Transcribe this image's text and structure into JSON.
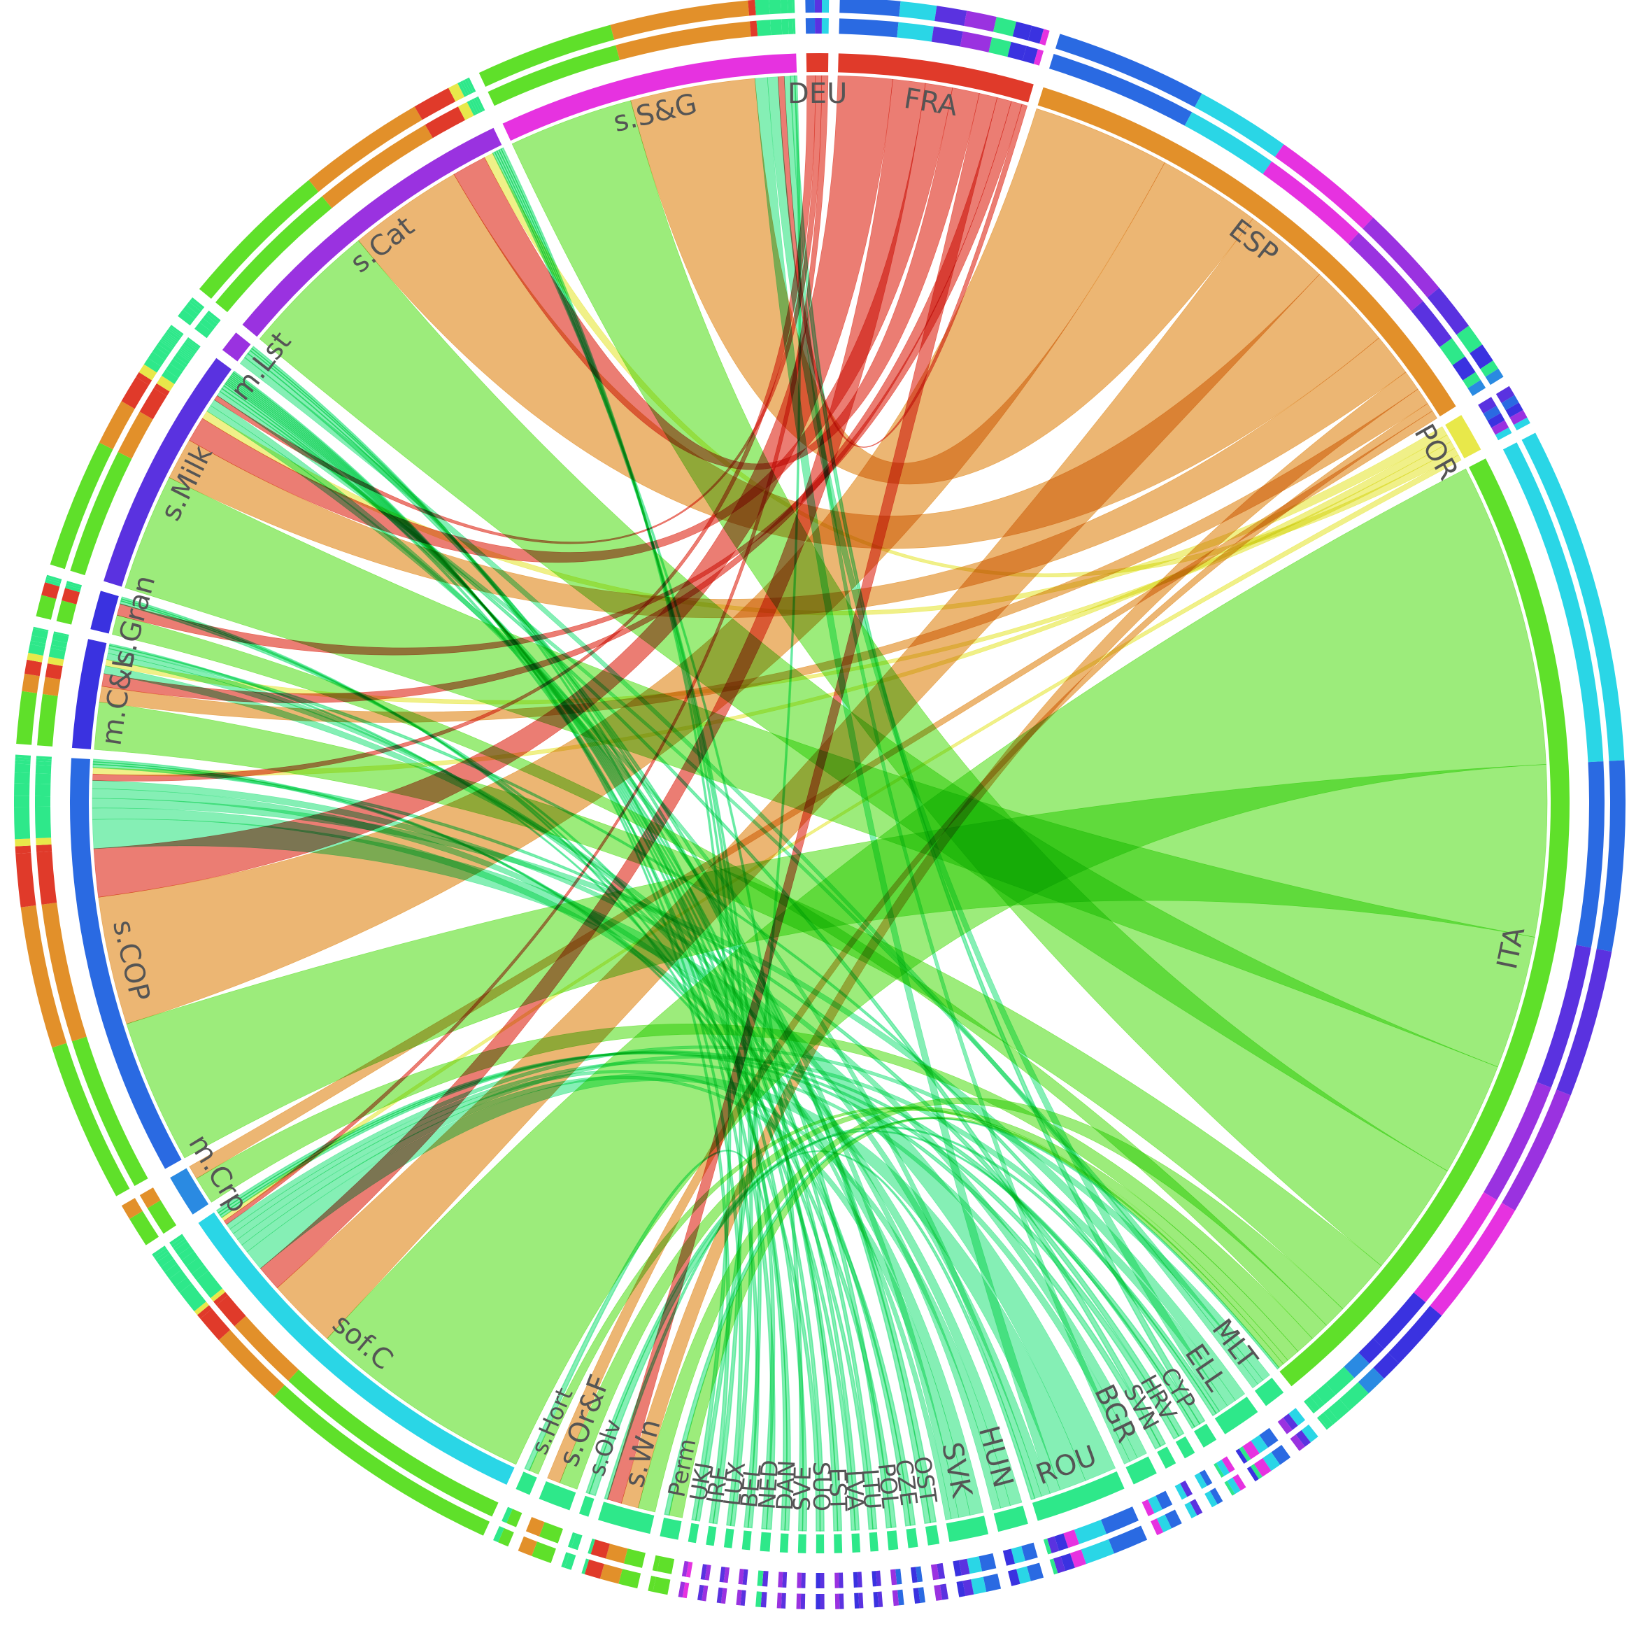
{
  "diagram": {
    "type": "chord",
    "palette": {
      "crop": "#5fe02a",
      "cattle": "#e2902a",
      "dairy": "#e03a2a",
      "misc": "#e8e84a",
      "green2": "#2ee88a",
      "cyan": "#2ad6e6",
      "blue": "#2a6ae2",
      "indigo": "#3a32e0",
      "violet": "#9a32e0",
      "magenta": "#e632e0"
    },
    "sectors": [
      {
        "id": "DEU",
        "label": "DEU",
        "color": "#e03a2a",
        "group": "country",
        "size": 1
      },
      {
        "id": "FRA",
        "label": "FRA",
        "color": "#e03a2a",
        "group": "country",
        "size": 11
      },
      {
        "id": "ESP",
        "label": "ESP",
        "color": "#e2902a",
        "group": "country",
        "size": 30
      },
      {
        "id": "POR",
        "label": "POR",
        "color": "#e8e84a",
        "group": "country",
        "size": 2
      },
      {
        "id": "ITA",
        "label": "ITA",
        "color": "#5fe02a",
        "group": "country",
        "size": 58
      },
      {
        "id": "MLT",
        "label": "MLT",
        "color": "#2ee88a",
        "group": "country",
        "size": 1
      },
      {
        "id": "ELL",
        "label": "ELL",
        "color": "#2ee88a",
        "group": "country",
        "size": 2
      },
      {
        "id": "CYP",
        "label": "CYP",
        "color": "#2ee88a",
        "group": "country",
        "size": 0.6
      },
      {
        "id": "HRV",
        "label": "HRV",
        "color": "#2ee88a",
        "group": "country",
        "size": 0.4
      },
      {
        "id": "SVN",
        "label": "SVN",
        "color": "#2ee88a",
        "group": "country",
        "size": 0.4
      },
      {
        "id": "BGR",
        "label": "BGR",
        "color": "#2ee88a",
        "group": "country",
        "size": 1.2
      },
      {
        "id": "ROU",
        "label": "ROU",
        "color": "#2ee88a",
        "group": "country",
        "size": 5
      },
      {
        "id": "HUN",
        "label": "HUN",
        "color": "#2ee88a",
        "group": "country",
        "size": 1.5
      },
      {
        "id": "SVK",
        "label": "SVK",
        "color": "#2ee88a",
        "group": "country",
        "size": 2
      },
      {
        "id": "OST",
        "label": "OST",
        "color": "#2ee88a",
        "group": "country",
        "size": 0.4
      },
      {
        "id": "CZE",
        "label": "CZE",
        "color": "#2ee88a",
        "group": "country",
        "size": 0.3
      },
      {
        "id": "POL",
        "label": "POL",
        "color": "#2ee88a",
        "group": "country",
        "size": 0.3
      },
      {
        "id": "LTU",
        "label": "LTU",
        "color": "#2ee88a",
        "group": "country",
        "size": 0.2
      },
      {
        "id": "LVA",
        "label": "LVA",
        "color": "#2ee88a",
        "group": "country",
        "size": 0.2
      },
      {
        "id": "EST",
        "label": "EST",
        "color": "#2ee88a",
        "group": "country",
        "size": 0.2
      },
      {
        "id": "SUO",
        "label": "SUO",
        "color": "#2ee88a",
        "group": "country",
        "size": 0.2
      },
      {
        "id": "SVE",
        "label": "SVE",
        "color": "#2ee88a",
        "group": "country",
        "size": 0.2
      },
      {
        "id": "DAN",
        "label": "DAN",
        "color": "#2ee88a",
        "group": "country",
        "size": 0.2
      },
      {
        "id": "NED",
        "label": "NED",
        "color": "#2ee88a",
        "group": "country",
        "size": 0.3
      },
      {
        "id": "BEL",
        "label": "BEL",
        "color": "#2ee88a",
        "group": "country",
        "size": 0.2
      },
      {
        "id": "LUX",
        "label": "LUX",
        "color": "#2ee88a",
        "group": "country",
        "size": 0.2
      },
      {
        "id": "IRE",
        "label": "IRE",
        "color": "#2ee88a",
        "group": "country",
        "size": 0.2
      },
      {
        "id": "UKI",
        "label": "UKI",
        "color": "#2ee88a",
        "group": "country",
        "size": 0.2
      },
      {
        "id": "Perm",
        "label": "Perm",
        "color": "#2ee88a",
        "group": "type",
        "size": 0.8
      },
      {
        "id": "s.Wn",
        "label": "s.Wn",
        "color": "#2ee88a",
        "group": "type",
        "size": 2.8
      },
      {
        "id": "s.Olv",
        "label": "s.Olv",
        "color": "#2ee88a",
        "group": "type",
        "size": 0.3
      },
      {
        "id": "s.Or&F",
        "label": "s.Or&F",
        "color": "#2ee88a",
        "group": "type",
        "size": 1.6
      },
      {
        "id": "s.Hort",
        "label": "s.Hort",
        "color": "#2ee88a",
        "group": "type",
        "size": 0.6
      },
      {
        "id": "sof.C",
        "label": "sof.C",
        "color": "#2ad6e6",
        "group": "type",
        "size": 23
      },
      {
        "id": "m.Crp",
        "label": "m.Crp",
        "color": "#2a8ae2",
        "group": "type",
        "size": 2.2
      },
      {
        "id": "s.COP",
        "label": "s.COP",
        "color": "#2a6ae2",
        "group": "type",
        "size": 24
      },
      {
        "id": "m.C&L",
        "label": "m.C&L",
        "color": "#3a32e0",
        "group": "type",
        "size": 6
      },
      {
        "id": "s.Gran",
        "label": "s.Gran",
        "color": "#3a32e0",
        "group": "type",
        "size": 2
      },
      {
        "id": "s.Milk",
        "label": "s.Milk",
        "color": "#5a32e0",
        "group": "type",
        "size": 14
      },
      {
        "id": "m.Lst",
        "label": "m.Lst",
        "color": "#9a32e0",
        "group": "type",
        "size": 1
      },
      {
        "id": "s.Cat",
        "label": "s.Cat",
        "color": "#9a32e0",
        "group": "type",
        "size": 18
      },
      {
        "id": "s.S&G",
        "label": "s.S&G",
        "color": "#e632e0",
        "group": "type",
        "size": 17
      }
    ],
    "flows": [
      {
        "source": "ITA",
        "target": "sof.C",
        "value": 16
      },
      {
        "source": "ITA",
        "target": "s.COP",
        "value": 9
      },
      {
        "source": "ITA",
        "target": "s.Milk",
        "value": 7
      },
      {
        "source": "ITA",
        "target": "s.Cat",
        "value": 6
      },
      {
        "source": "ITA",
        "target": "s.S&G",
        "value": 6
      },
      {
        "source": "ITA",
        "target": "m.C&L",
        "value": 3
      },
      {
        "source": "ITA",
        "target": "s.Gran",
        "value": 1
      },
      {
        "source": "ITA",
        "target": "m.Crp",
        "value": 1
      },
      {
        "source": "ITA",
        "target": "s.Wn",
        "value": 1.2
      },
      {
        "source": "ITA",
        "target": "s.Or&F",
        "value": 0.7
      },
      {
        "source": "ITA",
        "target": "s.Hort",
        "value": 0.3
      },
      {
        "source": "ITA",
        "target": "Perm",
        "value": 0.3
      },
      {
        "source": "ESP",
        "target": "s.COP",
        "value": 8
      },
      {
        "source": "ESP",
        "target": "sof.C",
        "value": 5
      },
      {
        "source": "ESP",
        "target": "s.S&G",
        "value": 6
      },
      {
        "source": "ESP",
        "target": "s.Cat",
        "value": 5
      },
      {
        "source": "ESP",
        "target": "s.Milk",
        "value": 2.5
      },
      {
        "source": "ESP",
        "target": "s.Wn",
        "value": 1.2
      },
      {
        "source": "ESP",
        "target": "m.C&L",
        "value": 1
      },
      {
        "source": "ESP",
        "target": "s.Or&F",
        "value": 0.5
      },
      {
        "source": "ESP",
        "target": "m.Crp",
        "value": 0.5
      },
      {
        "source": "FRA",
        "target": "s.COP",
        "value": 3
      },
      {
        "source": "FRA",
        "target": "sof.C",
        "value": 1.8
      },
      {
        "source": "FRA",
        "target": "s.Milk",
        "value": 1.5
      },
      {
        "source": "FRA",
        "target": "s.Cat",
        "value": 1.5
      },
      {
        "source": "FRA",
        "target": "s.Wn",
        "value": 1
      },
      {
        "source": "FRA",
        "target": "m.C&L",
        "value": 0.8
      },
      {
        "source": "FRA",
        "target": "s.Gran",
        "value": 0.6
      },
      {
        "source": "FRA",
        "target": "s.S&G",
        "value": 0.3
      },
      {
        "source": "DEU",
        "target": "s.COP",
        "value": 0.4
      },
      {
        "source": "DEU",
        "target": "s.Milk",
        "value": 0.3
      },
      {
        "source": "DEU",
        "target": "sof.C",
        "value": 0.3
      },
      {
        "source": "POR",
        "target": "s.Milk",
        "value": 0.5
      },
      {
        "source": "POR",
        "target": "s.COP",
        "value": 0.4
      },
      {
        "source": "POR",
        "target": "m.C&L",
        "value": 0.4
      },
      {
        "source": "POR",
        "target": "s.Cat",
        "value": 0.4
      },
      {
        "source": "POR",
        "target": "sof.C",
        "value": 0.3
      },
      {
        "source": "ROU",
        "target": "s.COP",
        "value": 1.8
      },
      {
        "source": "ROU",
        "target": "sof.C",
        "value": 1.5
      },
      {
        "source": "ROU",
        "target": "s.S&G",
        "value": 0.6
      },
      {
        "source": "ROU",
        "target": "m.C&L",
        "value": 0.5
      },
      {
        "source": "ROU",
        "target": "s.Milk",
        "value": 0.4
      },
      {
        "source": "ROU",
        "target": "s.Wn",
        "value": 0.2
      },
      {
        "source": "ELL",
        "target": "s.COP",
        "value": 0.6
      },
      {
        "source": "ELL",
        "target": "sof.C",
        "value": 0.5
      },
      {
        "source": "ELL",
        "target": "s.S&G",
        "value": 0.5
      },
      {
        "source": "ELL",
        "target": "s.Olv",
        "value": 0.2
      },
      {
        "source": "ELL",
        "target": "m.C&L",
        "value": 0.2
      },
      {
        "source": "SVK",
        "target": "s.COP",
        "value": 0.7
      },
      {
        "source": "SVK",
        "target": "sof.C",
        "value": 0.6
      },
      {
        "source": "SVK",
        "target": "s.Milk",
        "value": 0.4
      },
      {
        "source": "SVK",
        "target": "m.C&L",
        "value": 0.3
      },
      {
        "source": "HUN",
        "target": "s.COP",
        "value": 0.6
      },
      {
        "source": "HUN",
        "target": "sof.C",
        "value": 0.5
      },
      {
        "source": "HUN",
        "target": "m.C&L",
        "value": 0.4
      },
      {
        "source": "BGR",
        "target": "s.COP",
        "value": 0.5
      },
      {
        "source": "BGR",
        "target": "sof.C",
        "value": 0.4
      },
      {
        "source": "BGR",
        "target": "s.S&G",
        "value": 0.3
      },
      {
        "source": "MLT",
        "target": "sof.C",
        "value": 0.4
      },
      {
        "source": "MLT",
        "target": "s.Milk",
        "value": 0.3
      },
      {
        "source": "MLT",
        "target": "m.Lst",
        "value": 0.3
      },
      {
        "source": "CYP",
        "target": "s.S&G",
        "value": 0.2
      },
      {
        "source": "CYP",
        "target": "sof.C",
        "value": 0.2
      },
      {
        "source": "CYP",
        "target": "s.Olv",
        "value": 0.1
      },
      {
        "source": "HRV",
        "target": "s.COP",
        "value": 0.2
      },
      {
        "source": "HRV",
        "target": "sof.C",
        "value": 0.2
      },
      {
        "source": "SVN",
        "target": "s.Milk",
        "value": 0.2
      },
      {
        "source": "SVN",
        "target": "sof.C",
        "value": 0.2
      },
      {
        "source": "OST",
        "target": "s.Milk",
        "value": 0.2
      },
      {
        "source": "OST",
        "target": "m.Lst",
        "value": 0.2
      },
      {
        "source": "CZE",
        "target": "s.COP",
        "value": 0.15
      },
      {
        "source": "CZE",
        "target": "s.Gran",
        "value": 0.15
      },
      {
        "source": "POL",
        "target": "s.COP",
        "value": 0.15
      },
      {
        "source": "POL",
        "target": "m.Lst",
        "value": 0.15
      },
      {
        "source": "LTU",
        "target": "s.Milk",
        "value": 0.1
      },
      {
        "source": "LTU",
        "target": "m.C&L",
        "value": 0.1
      },
      {
        "source": "LVA",
        "target": "s.Milk",
        "value": 0.1
      },
      {
        "source": "LVA",
        "target": "s.Gran",
        "value": 0.1
      },
      {
        "source": "EST",
        "target": "s.Milk",
        "value": 0.1
      },
      {
        "source": "EST",
        "target": "m.Lst",
        "value": 0.1
      },
      {
        "source": "SUO",
        "target": "s.Milk",
        "value": 0.1
      },
      {
        "source": "SUO",
        "target": "s.Gran",
        "value": 0.1
      },
      {
        "source": "SVE",
        "target": "s.Milk",
        "value": 0.1
      },
      {
        "source": "SVE",
        "target": "s.Cat",
        "value": 0.1
      },
      {
        "source": "DAN",
        "target": "s.Milk",
        "value": 0.1
      },
      {
        "source": "DAN",
        "target": "m.Lst",
        "value": 0.1
      },
      {
        "source": "NED",
        "target": "s.Milk",
        "value": 0.15
      },
      {
        "source": "NED",
        "target": "s.Hort",
        "value": 0.15
      },
      {
        "source": "BEL",
        "target": "s.Milk",
        "value": 0.1
      },
      {
        "source": "BEL",
        "target": "s.Cat",
        "value": 0.1
      },
      {
        "source": "LUX",
        "target": "s.Cat",
        "value": 0.1
      },
      {
        "source": "LUX",
        "target": "s.Milk",
        "value": 0.1
      },
      {
        "source": "IRE",
        "target": "s.Cat",
        "value": 0.1
      },
      {
        "source": "IRE",
        "target": "s.Milk",
        "value": 0.1
      },
      {
        "source": "UKI",
        "target": "s.S&G",
        "value": 0.1
      },
      {
        "source": "UKI",
        "target": "s.Cat",
        "value": 0.1
      },
      {
        "source": "Perm",
        "target": "ITA",
        "value": 0.1
      }
    ]
  }
}
